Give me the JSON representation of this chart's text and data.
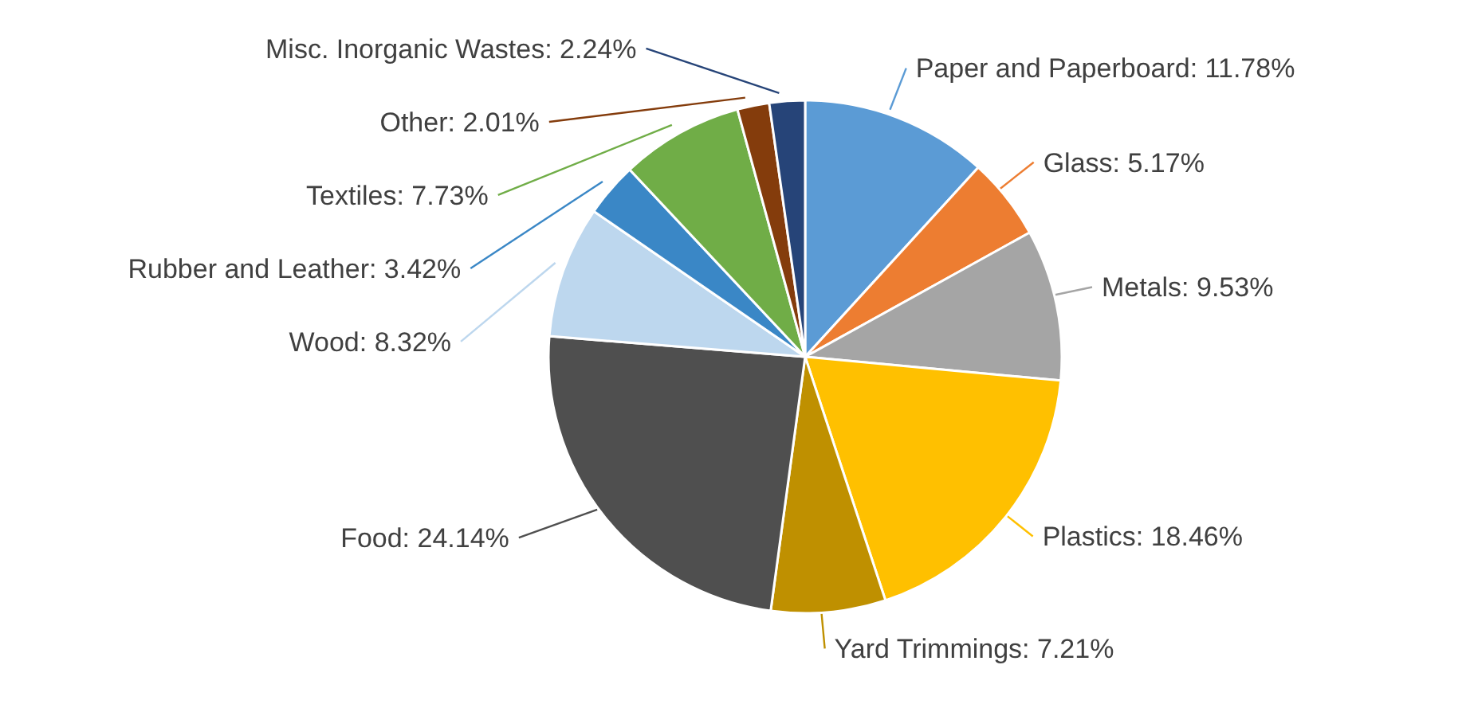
{
  "chart_data": {
    "type": "pie",
    "categories": [
      "Paper and Paperboard",
      "Glass",
      "Metals",
      "Plastics",
      "Yard Trimmings",
      "Food",
      "Wood",
      "Rubber and Leather",
      "Textiles",
      "Other",
      "Misc. Inorganic Wastes"
    ],
    "values": [
      11.78,
      5.17,
      9.53,
      18.46,
      7.21,
      24.14,
      8.32,
      3.42,
      7.73,
      2.01,
      2.24
    ],
    "value_labels": [
      "11.78%",
      "5.17%",
      "9.53%",
      "18.46%",
      "7.21%",
      "24.14%",
      "8.32%",
      "3.42%",
      "7.73%",
      "2.01%",
      "2.24%"
    ],
    "colors": [
      "#5b9bd5",
      "#ed7d31",
      "#a5a5a5",
      "#ffc000",
      "#bf9000",
      "#4f4f4f",
      "#bdd7ee",
      "#3a87c6",
      "#70ad47",
      "#843c0c",
      "#264478"
    ]
  }
}
